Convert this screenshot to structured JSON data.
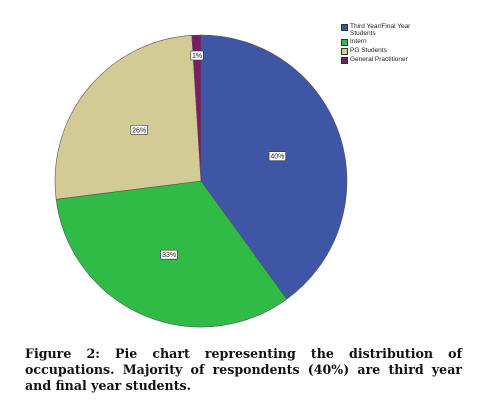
{
  "chart_data": {
    "type": "pie",
    "categories": [
      "Third Year/Final Year\nStudents",
      "Intern",
      "PG Students",
      "General Practitioner"
    ],
    "values": [
      40,
      33,
      26,
      1
    ],
    "data_labels": [
      "40%",
      "33%",
      "26%",
      "1%"
    ],
    "colors": [
      "#3f55a5",
      "#2fbb45",
      "#d3cb96",
      "#7b1c6a"
    ],
    "legend_position": "top-right",
    "start_angle_deg": 0,
    "direction": "clockwise"
  },
  "caption": {
    "text": "Figure 2: Pie chart representing the distribution of occupations. Majority of respondents (40%) are third year and final year students."
  }
}
